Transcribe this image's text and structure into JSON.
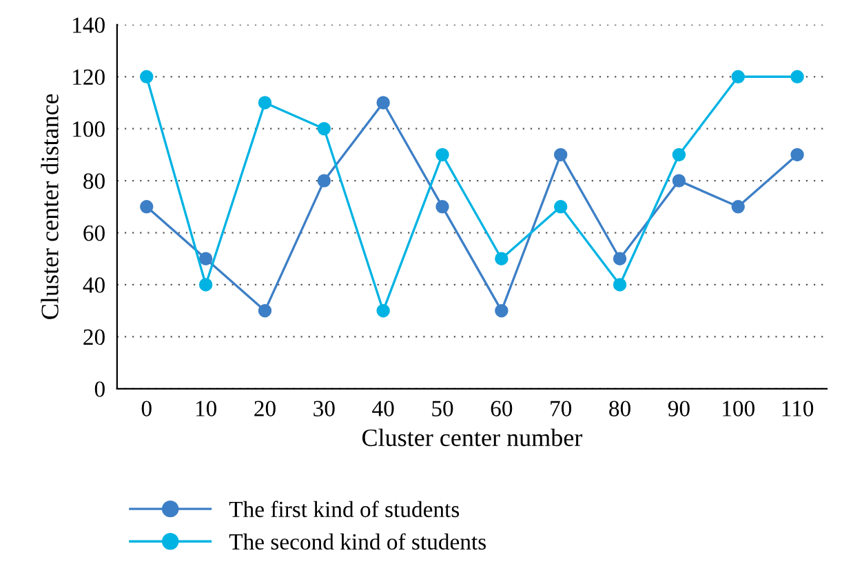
{
  "chart_data": {
    "type": "line",
    "xlabel": "Cluster center number",
    "ylabel": "Cluster center distance",
    "x": [
      0,
      10,
      20,
      30,
      40,
      50,
      60,
      70,
      80,
      90,
      100,
      110
    ],
    "series": [
      {
        "name": "The first kind of students",
        "color": "#3d7fc6",
        "values": [
          70,
          50,
          30,
          80,
          110,
          70,
          30,
          90,
          50,
          80,
          70,
          90
        ]
      },
      {
        "name": "The second kind of students",
        "color": "#00b3e3",
        "values": [
          120,
          40,
          110,
          100,
          30,
          90,
          50,
          70,
          40,
          90,
          120,
          120
        ]
      }
    ],
    "xlim": [
      -5,
      115
    ],
    "xticks": [
      0,
      10,
      20,
      30,
      40,
      50,
      60,
      70,
      80,
      90,
      100,
      110
    ],
    "ylim": [
      0,
      140
    ],
    "yticks": [
      0,
      20,
      40,
      60,
      80,
      100,
      120,
      140
    ],
    "grid": "y",
    "legend": "bottom",
    "marker": "circle",
    "line_style": "solid"
  }
}
